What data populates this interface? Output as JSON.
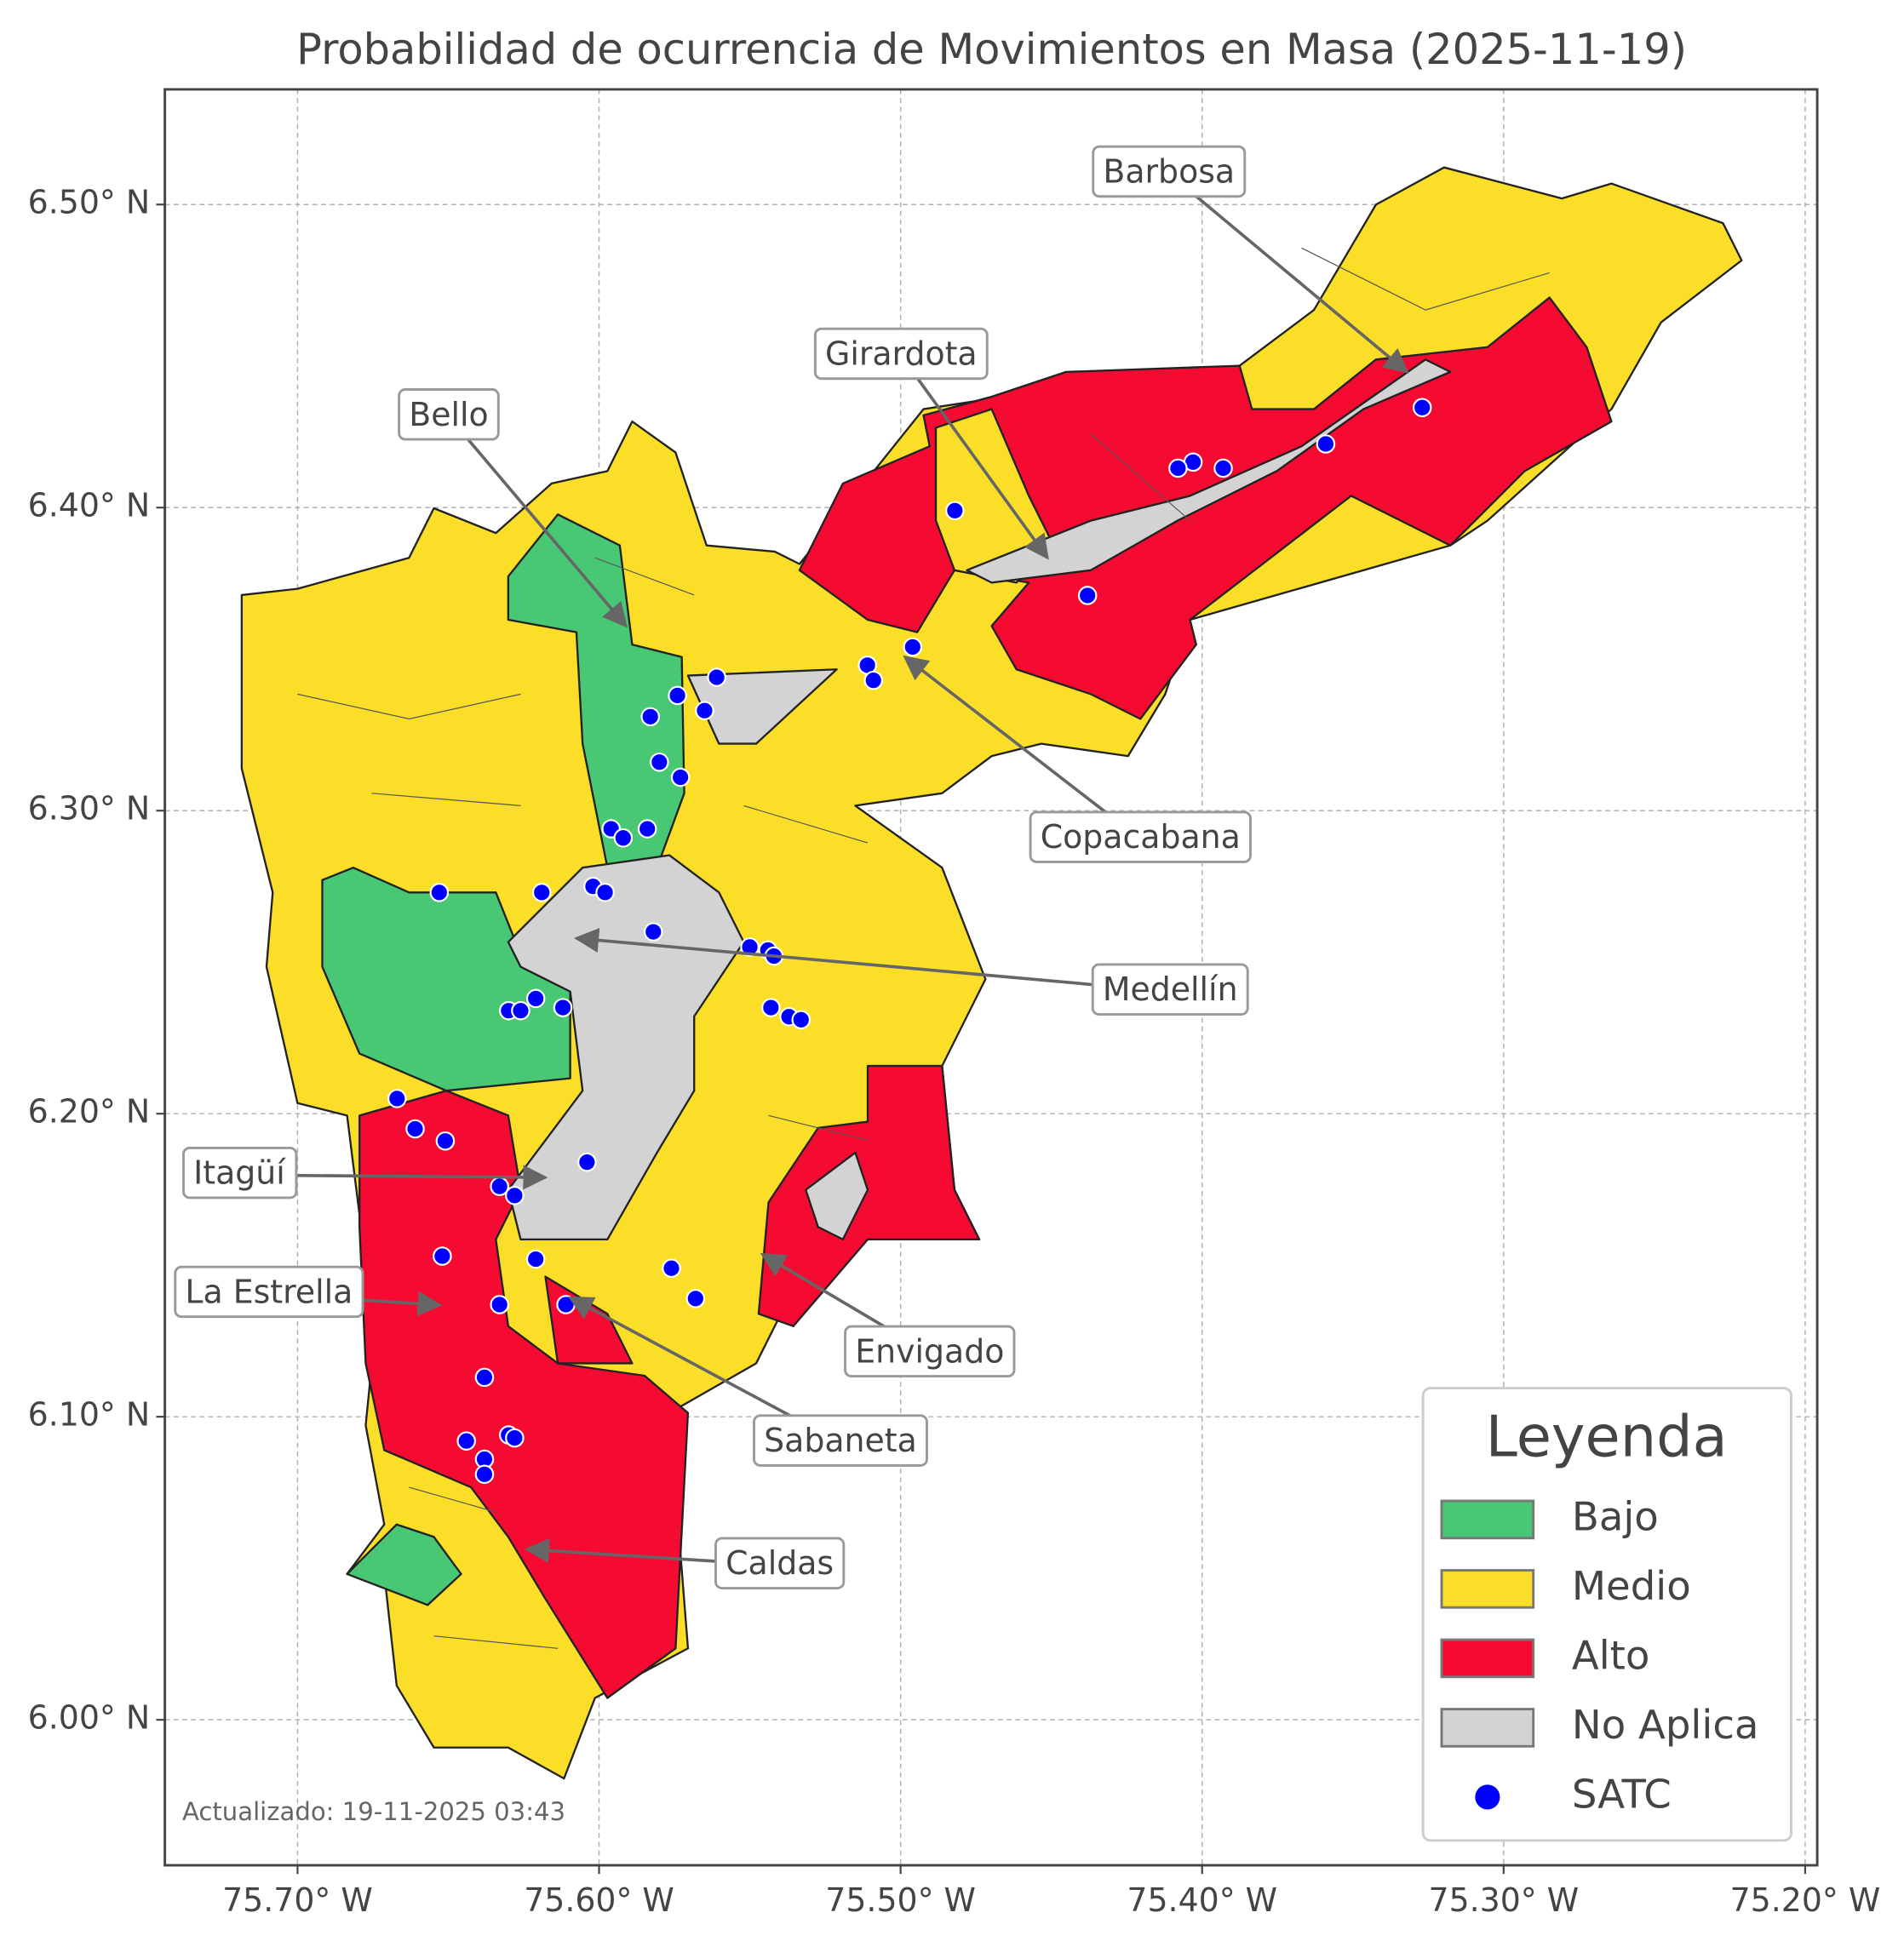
{
  "chart_data": {
    "type": "map",
    "title": "Probabilidad de ocurrencia de Movimientos en Masa (2025-11-19)",
    "xlim": [
      -75.744,
      -75.196
    ],
    "ylim": [
      5.952,
      6.538
    ],
    "xticks": [
      {
        "value": -75.7,
        "label": "75.70° W"
      },
      {
        "value": -75.6,
        "label": "75.60° W"
      },
      {
        "value": -75.5,
        "label": "75.50° W"
      },
      {
        "value": -75.4,
        "label": "75.40° W"
      },
      {
        "value": -75.3,
        "label": "75.30° W"
      },
      {
        "value": -75.2,
        "label": "75.20° W"
      }
    ],
    "yticks": [
      {
        "value": 6.0,
        "label": "6.00° N"
      },
      {
        "value": 6.1,
        "label": "6.10° N"
      },
      {
        "value": 6.2,
        "label": "6.20° N"
      },
      {
        "value": 6.3,
        "label": "6.30° N"
      },
      {
        "value": 6.4,
        "label": "6.40° N"
      },
      {
        "value": 6.5,
        "label": "6.50° N"
      }
    ],
    "grid": true,
    "legend": {
      "title": "Leyenda",
      "corner": "lower right",
      "items": [
        {
          "name": "Bajo",
          "color": "#48c774"
        },
        {
          "name": "Medio",
          "color": "#fbde27"
        },
        {
          "name": "Alto",
          "color": "#f50a32"
        },
        {
          "name": "No Aplica",
          "color": "#d3d3d3"
        }
      ]
    },
    "series": [
      {
        "name": "SATC",
        "color": "#0000ff",
        "x": [
          -75.327,
          -75.359,
          -75.393,
          -75.403,
          -75.408,
          -75.482,
          -75.438,
          -75.496,
          -75.511,
          -75.509,
          -75.561,
          -75.574,
          -75.565,
          -75.583,
          -75.58,
          -75.573,
          -75.596,
          -75.584,
          -75.592,
          -75.653,
          -75.619,
          -75.602,
          -75.598,
          -75.582,
          -75.55,
          -75.544,
          -75.542,
          -75.543,
          -75.537,
          -75.533,
          -75.621,
          -75.63,
          -75.626,
          -75.612,
          -75.667,
          -75.661,
          -75.651,
          -75.604,
          -75.633,
          -75.628,
          -75.652,
          -75.621,
          -75.576,
          -75.568,
          -75.633,
          -75.611,
          -75.638,
          -75.644,
          -75.63,
          -75.628,
          -75.638,
          -75.638
        ],
        "y": [
          6.433,
          6.421,
          6.413,
          6.415,
          6.413,
          6.399,
          6.371,
          6.354,
          6.348,
          6.343,
          6.344,
          6.338,
          6.333,
          6.331,
          6.316,
          6.311,
          6.294,
          6.294,
          6.291,
          6.273,
          6.273,
          6.275,
          6.273,
          6.26,
          6.255,
          6.254,
          6.252,
          6.235,
          6.232,
          6.231,
          6.238,
          6.234,
          6.234,
          6.235,
          6.205,
          6.195,
          6.191,
          6.184,
          6.176,
          6.173,
          6.153,
          6.152,
          6.149,
          6.139,
          6.137,
          6.137,
          6.113,
          6.092,
          6.094,
          6.093,
          6.086,
          6.081
        ]
      }
    ],
    "annotations": [
      "Barbosa",
      "Girardota",
      "Bello",
      "Copacabana",
      "Medellín",
      "Itagüí",
      "La Estrella",
      "Envigado",
      "Sabaneta",
      "Caldas"
    ],
    "note": "Actualizado: 19-11-2025 03:43"
  }
}
